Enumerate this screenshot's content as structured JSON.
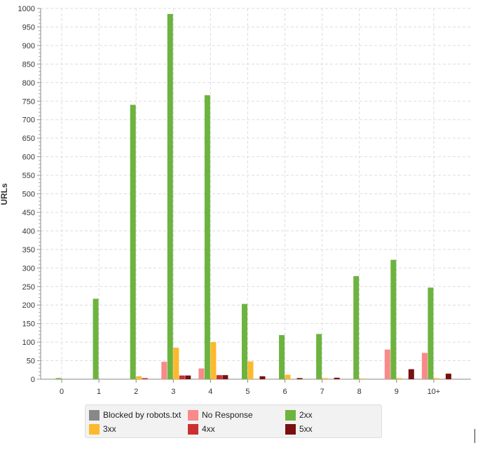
{
  "chart_data": {
    "type": "bar",
    "title": "",
    "xlabel": "",
    "ylabel": "URLs",
    "ylim": [
      0,
      1000
    ],
    "ytick_step": 50,
    "grid": true,
    "legend_position": "bottom",
    "categories": [
      "0",
      "1",
      "2",
      "3",
      "4",
      "5",
      "6",
      "7",
      "8",
      "9",
      "10+"
    ],
    "series": [
      {
        "name": "Blocked by robots.txt",
        "color": "#888888",
        "values": [
          0,
          0,
          0,
          0,
          0,
          0,
          0,
          0,
          0,
          0,
          0
        ]
      },
      {
        "name": "No Response",
        "color": "#f88a8a",
        "values": [
          0,
          0,
          0,
          47,
          29,
          0,
          0,
          0,
          0,
          80,
          71
        ]
      },
      {
        "name": "2xx",
        "color": "#6db33f",
        "values": [
          3,
          217,
          740,
          985,
          766,
          203,
          119,
          122,
          278,
          322,
          247
        ]
      },
      {
        "name": "3xx",
        "color": "#fdb92b",
        "values": [
          0,
          0,
          8,
          85,
          100,
          48,
          12,
          3,
          2,
          3,
          3
        ]
      },
      {
        "name": "4xx",
        "color": "#cc2f2f",
        "values": [
          0,
          0,
          3,
          10,
          11,
          0,
          0,
          0,
          0,
          0,
          0
        ]
      },
      {
        "name": "5xx",
        "color": "#7a1010",
        "values": [
          0,
          0,
          0,
          10,
          11,
          8,
          3,
          4,
          0,
          27,
          15
        ]
      }
    ]
  }
}
